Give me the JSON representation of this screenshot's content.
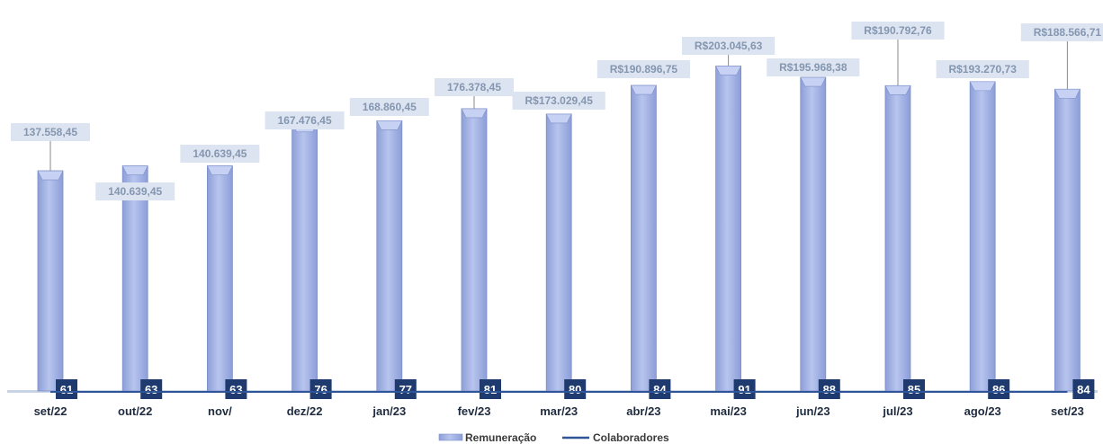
{
  "chart_data": {
    "type": "bar",
    "categories": [
      "set/22",
      "out/22",
      "nov/22",
      "dez/22",
      "jan/23",
      "fev/23",
      "mar/23",
      "abr/23",
      "mai/23",
      "jun/23",
      "jul/23",
      "ago/23",
      "set/23"
    ],
    "category_labels": [
      "set/22",
      "out/22",
      "nov/",
      "dez/22",
      "jan/23",
      "fev/23",
      "mar/23",
      "abr/23",
      "mai/23",
      "jun/23",
      "jul/23",
      "ago/23",
      "set/23"
    ],
    "series": [
      {
        "name": "Remuneração",
        "type": "bar",
        "color": "#9fb0e2",
        "values": [
          137558.45,
          140639.45,
          140639.45,
          167476.45,
          168860.45,
          176378.45,
          173029.45,
          190896.75,
          203045.63,
          195968.38,
          190792.76,
          193270.73,
          188566.71
        ],
        "labels": [
          "137.558,45",
          "140.639,45",
          "140.639,45",
          "167.476,45",
          "168.860,45",
          "176.378,45",
          "R$173.029,45",
          "R$190.896,75",
          "R$203.045,63",
          "R$195.968,38",
          "R$190.792,76",
          "R$193.270,73",
          "R$188.566,71"
        ]
      },
      {
        "name": "Colaboradores",
        "type": "line",
        "color": "#2e5597",
        "values": [
          61,
          63,
          63,
          76,
          77,
          81,
          80,
          84,
          91,
          88,
          85,
          86,
          84
        ],
        "labels": [
          "61",
          "63",
          "63",
          "76",
          "77",
          "81",
          "80",
          "84",
          "91",
          "88",
          "85",
          "86",
          "84"
        ]
      }
    ],
    "legend": {
      "position": "bottom",
      "entries": [
        "Remuneração",
        "Colaboradores"
      ]
    },
    "grid": false,
    "ylim": [
      0,
      205000
    ],
    "colors": {
      "bar_fill": "#9fb0e2",
      "bar_edge": "#7d8fc8",
      "label_text": "#8496b0",
      "label_box": "#dde4f1",
      "count_box": "#1f3a6e",
      "line": "#2e5597",
      "axis": "#c9d3e6"
    }
  }
}
